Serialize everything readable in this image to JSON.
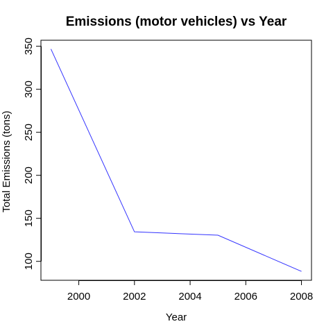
{
  "chart_data": {
    "type": "line",
    "title": "Emissions (motor vehicles) vs Year",
    "xlabel": "Year",
    "ylabel": "Total Emissions (tons)",
    "x": [
      1999,
      2002,
      2005,
      2008
    ],
    "series": [
      {
        "values": [
          346.8,
          134.3,
          130.4,
          88.3
        ],
        "color": "#3333ff"
      }
    ],
    "xlim": [
      1998.64,
      2008.36
    ],
    "ylim": [
      78,
      357
    ],
    "xticks": [
      2000,
      2002,
      2004,
      2006,
      2008
    ],
    "yticks": [
      100,
      150,
      200,
      250,
      300,
      350
    ],
    "xtick_labels": [
      "2000",
      "2002",
      "2004",
      "2006",
      "2008"
    ],
    "ytick_labels": [
      "100",
      "150",
      "200",
      "250",
      "300",
      "350"
    ],
    "grid": false,
    "legend": "none"
  }
}
